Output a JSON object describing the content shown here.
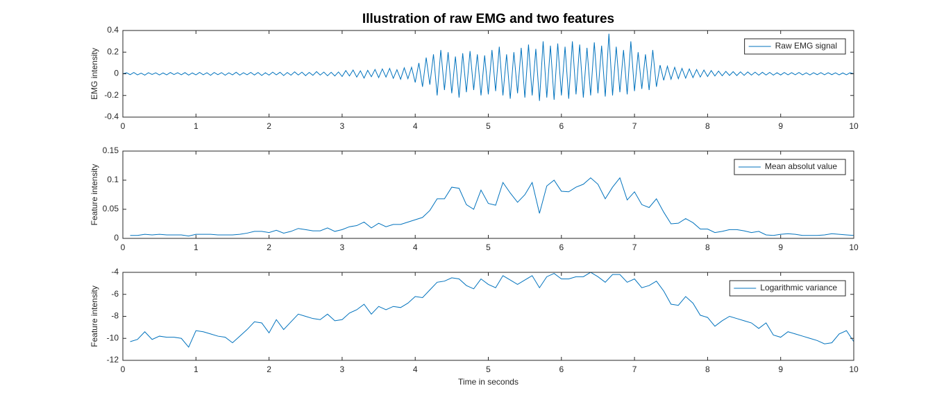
{
  "chart_data": [
    {
      "type": "line",
      "title": "Illustration of raw EMG and two features",
      "ylabel": "EMG intensity",
      "x": [
        0,
        0.05,
        0.1,
        0.15,
        0.2,
        0.25,
        0.3,
        0.35,
        0.4,
        0.45,
        0.5,
        0.55,
        0.6,
        0.65,
        0.7,
        0.75,
        0.8,
        0.85,
        0.9,
        0.95,
        1,
        1.05,
        1.1,
        1.15,
        1.2,
        1.25,
        1.3,
        1.35,
        1.4,
        1.45,
        1.5,
        1.55,
        1.6,
        1.65,
        1.7,
        1.75,
        1.8,
        1.85,
        1.9,
        1.95,
        2,
        2.05,
        2.1,
        2.15,
        2.2,
        2.25,
        2.3,
        2.35,
        2.4,
        2.45,
        2.5,
        2.55,
        2.6,
        2.65,
        2.7,
        2.75,
        2.8,
        2.85,
        2.9,
        2.95,
        3,
        3.05,
        3.1,
        3.15,
        3.2,
        3.25,
        3.3,
        3.35,
        3.4,
        3.45,
        3.5,
        3.55,
        3.6,
        3.65,
        3.7,
        3.75,
        3.8,
        3.85,
        3.9,
        3.95,
        4,
        4.05,
        4.1,
        4.15,
        4.2,
        4.25,
        4.3,
        4.35,
        4.4,
        4.45,
        4.5,
        4.55,
        4.6,
        4.65,
        4.7,
        4.75,
        4.8,
        4.85,
        4.9,
        4.95,
        5,
        5.05,
        5.1,
        5.15,
        5.2,
        5.25,
        5.3,
        5.35,
        5.4,
        5.45,
        5.5,
        5.55,
        5.6,
        5.65,
        5.7,
        5.75,
        5.8,
        5.85,
        5.9,
        5.95,
        6,
        6.05,
        6.1,
        6.15,
        6.2,
        6.25,
        6.3,
        6.35,
        6.4,
        6.45,
        6.5,
        6.55,
        6.6,
        6.65,
        6.7,
        6.75,
        6.8,
        6.85,
        6.9,
        6.95,
        7,
        7.05,
        7.1,
        7.15,
        7.2,
        7.25,
        7.3,
        7.35,
        7.4,
        7.45,
        7.5,
        7.55,
        7.6,
        7.65,
        7.7,
        7.75,
        7.8,
        7.85,
        7.9,
        7.95,
        8,
        8.05,
        8.1,
        8.15,
        8.2,
        8.25,
        8.3,
        8.35,
        8.4,
        8.45,
        8.5,
        8.55,
        8.6,
        8.65,
        8.7,
        8.75,
        8.8,
        8.85,
        8.9,
        8.95,
        9,
        9.05,
        9.1,
        9.15,
        9.2,
        9.25,
        9.3,
        9.35,
        9.4,
        9.45,
        9.5,
        9.55,
        9.6,
        9.65,
        9.7,
        9.75,
        9.8,
        9.85,
        9.9,
        9.95,
        10
      ],
      "series": [
        {
          "name": "Raw EMG signal",
          "color": "#0072bd",
          "values": [
            0,
            0.01,
            -0.008,
            0.012,
            -0.01,
            0.006,
            -0.012,
            0.01,
            -0.006,
            0.009,
            -0.011,
            0.008,
            -0.01,
            0.012,
            -0.007,
            0.01,
            -0.009,
            0.011,
            -0.012,
            0.008,
            -0.01,
            0.013,
            -0.009,
            0.01,
            -0.014,
            0.012,
            -0.008,
            0.011,
            -0.013,
            0.009,
            -0.01,
            0.014,
            -0.012,
            0.01,
            -0.009,
            0.013,
            -0.011,
            0.012,
            -0.015,
            0.01,
            -0.012,
            0.015,
            -0.01,
            0.014,
            -0.016,
            0.012,
            -0.013,
            0.018,
            -0.011,
            0.015,
            -0.017,
            0.013,
            -0.014,
            0.02,
            -0.012,
            0.016,
            -0.018,
            0.014,
            -0.02,
            0.017,
            -0.025,
            0.03,
            -0.02,
            0.035,
            -0.03,
            0.028,
            -0.04,
            0.032,
            -0.027,
            0.04,
            -0.035,
            0.045,
            -0.03,
            0.05,
            -0.042,
            0.038,
            -0.05,
            0.055,
            -0.045,
            0.06,
            -0.08,
            0.1,
            -0.12,
            0.15,
            -0.1,
            0.18,
            -0.2,
            0.22,
            -0.15,
            0.2,
            -0.18,
            0.16,
            -0.22,
            0.19,
            -0.17,
            0.21,
            -0.15,
            0.18,
            -0.2,
            0.17,
            -0.19,
            0.22,
            -0.16,
            0.25,
            -0.2,
            0.18,
            -0.23,
            0.2,
            -0.18,
            0.24,
            -0.22,
            0.27,
            -0.2,
            0.23,
            -0.25,
            0.3,
            -0.22,
            0.26,
            -0.24,
            0.28,
            -0.2,
            0.25,
            -0.23,
            0.3,
            -0.19,
            0.27,
            -0.22,
            0.24,
            -0.2,
            0.29,
            -0.18,
            0.26,
            -0.21,
            0.37,
            -0.2,
            0.25,
            -0.17,
            0.22,
            -0.19,
            0.3,
            -0.16,
            0.2,
            -0.14,
            0.18,
            -0.15,
            0.22,
            -0.12,
            0.08,
            -0.06,
            0.07,
            -0.05,
            0.06,
            -0.045,
            0.05,
            -0.04,
            0.045,
            -0.035,
            0.04,
            -0.03,
            0.035,
            -0.025,
            0.03,
            -0.02,
            0.025,
            -0.018,
            0.022,
            -0.015,
            0.02,
            -0.016,
            0.018,
            -0.014,
            0.017,
            -0.012,
            0.015,
            -0.013,
            0.014,
            -0.011,
            0.013,
            -0.012,
            0.01,
            -0.011,
            0.012,
            -0.01,
            0.011,
            -0.009,
            0.012,
            -0.01,
            0.009,
            -0.011,
            0.01,
            -0.008,
            0.011,
            -0.009,
            0.01,
            -0.008,
            0.009,
            -0.01,
            0.008,
            -0.009,
            0.01,
            0
          ]
        }
      ],
      "xlim": [
        0,
        10
      ],
      "xticks": [
        0,
        1,
        2,
        3,
        4,
        5,
        6,
        7,
        8,
        9,
        10
      ],
      "ylim": [
        -0.4,
        0.4
      ],
      "yticks": [
        -0.4,
        -0.2,
        0,
        0.2,
        0.4
      ],
      "legend": "upper right"
    },
    {
      "type": "line",
      "ylabel": "Feature intensity",
      "x": [
        0.1,
        0.2,
        0.3,
        0.4,
        0.5,
        0.6,
        0.7,
        0.8,
        0.9,
        1,
        1.1,
        1.2,
        1.3,
        1.4,
        1.5,
        1.6,
        1.7,
        1.8,
        1.9,
        2,
        2.1,
        2.2,
        2.3,
        2.4,
        2.5,
        2.6,
        2.7,
        2.8,
        2.9,
        3,
        3.1,
        3.2,
        3.3,
        3.4,
        3.5,
        3.6,
        3.7,
        3.8,
        3.9,
        4,
        4.1,
        4.2,
        4.3,
        4.4,
        4.5,
        4.6,
        4.7,
        4.8,
        4.9,
        5,
        5.1,
        5.2,
        5.3,
        5.4,
        5.5,
        5.6,
        5.7,
        5.8,
        5.9,
        6,
        6.1,
        6.2,
        6.3,
        6.4,
        6.5,
        6.6,
        6.7,
        6.8,
        6.9,
        7,
        7.1,
        7.2,
        7.3,
        7.4,
        7.5,
        7.6,
        7.7,
        7.8,
        7.9,
        8,
        8.1,
        8.2,
        8.3,
        8.4,
        8.5,
        8.6,
        8.7,
        8.8,
        8.9,
        9,
        9.1,
        9.2,
        9.3,
        9.4,
        9.5,
        9.6,
        9.7,
        9.8,
        9.9,
        10
      ],
      "series": [
        {
          "name": "Mean absolut value",
          "color": "#0072bd",
          "values": [
            0.005,
            0.005,
            0.007,
            0.006,
            0.007,
            0.006,
            0.006,
            0.006,
            0.004,
            0.007,
            0.007,
            0.007,
            0.006,
            0.006,
            0.006,
            0.007,
            0.009,
            0.012,
            0.012,
            0.01,
            0.014,
            0.009,
            0.012,
            0.017,
            0.015,
            0.013,
            0.013,
            0.018,
            0.012,
            0.015,
            0.02,
            0.022,
            0.028,
            0.018,
            0.026,
            0.02,
            0.024,
            0.024,
            0.028,
            0.032,
            0.036,
            0.048,
            0.068,
            0.068,
            0.088,
            0.086,
            0.058,
            0.05,
            0.083,
            0.06,
            0.057,
            0.096,
            0.078,
            0.062,
            0.075,
            0.096,
            0.043,
            0.09,
            0.1,
            0.081,
            0.08,
            0.088,
            0.093,
            0.104,
            0.093,
            0.068,
            0.088,
            0.104,
            0.066,
            0.08,
            0.058,
            0.053,
            0.068,
            0.045,
            0.025,
            0.026,
            0.034,
            0.027,
            0.016,
            0.016,
            0.01,
            0.012,
            0.015,
            0.015,
            0.013,
            0.01,
            0.012,
            0.006,
            0.005,
            0.007,
            0.008,
            0.007,
            0.005,
            0.005,
            0.005,
            0.006,
            0.008,
            0.007,
            0.006,
            0.005
          ]
        }
      ],
      "xlim": [
        0,
        10
      ],
      "xticks": [
        0,
        1,
        2,
        3,
        4,
        5,
        6,
        7,
        8,
        9,
        10
      ],
      "ylim": [
        0,
        0.15
      ],
      "yticks": [
        0,
        0.05,
        0.1,
        0.15
      ],
      "legend": "upper right"
    },
    {
      "type": "line",
      "ylabel": "Feature intensity",
      "xlabel": "Time in seconds",
      "x": [
        0.1,
        0.2,
        0.3,
        0.4,
        0.5,
        0.6,
        0.7,
        0.8,
        0.9,
        1,
        1.1,
        1.2,
        1.3,
        1.4,
        1.5,
        1.6,
        1.7,
        1.8,
        1.9,
        2,
        2.1,
        2.2,
        2.3,
        2.4,
        2.5,
        2.6,
        2.7,
        2.8,
        2.9,
        3,
        3.1,
        3.2,
        3.3,
        3.4,
        3.5,
        3.6,
        3.7,
        3.8,
        3.9,
        4,
        4.1,
        4.2,
        4.3,
        4.4,
        4.5,
        4.6,
        4.7,
        4.8,
        4.9,
        5,
        5.1,
        5.2,
        5.3,
        5.4,
        5.5,
        5.6,
        5.7,
        5.8,
        5.9,
        6,
        6.1,
        6.2,
        6.3,
        6.4,
        6.5,
        6.6,
        6.7,
        6.8,
        6.9,
        7,
        7.1,
        7.2,
        7.3,
        7.4,
        7.5,
        7.6,
        7.7,
        7.8,
        7.9,
        8,
        8.1,
        8.2,
        8.3,
        8.4,
        8.5,
        8.6,
        8.7,
        8.8,
        8.9,
        9,
        9.1,
        9.2,
        9.3,
        9.4,
        9.5,
        9.6,
        9.7,
        9.8,
        9.9,
        10
      ],
      "series": [
        {
          "name": "Logarithmic variance",
          "color": "#0072bd",
          "values": [
            -10.3,
            -10.1,
            -9.4,
            -10.1,
            -9.8,
            -9.9,
            -9.9,
            -10,
            -10.8,
            -9.3,
            -9.4,
            -9.6,
            -9.8,
            -9.9,
            -10.4,
            -9.8,
            -9.2,
            -8.5,
            -8.6,
            -9.5,
            -8.3,
            -9.2,
            -8.5,
            -7.8,
            -8,
            -8.2,
            -8.3,
            -7.8,
            -8.4,
            -8.3,
            -7.7,
            -7.4,
            -6.9,
            -7.8,
            -7.1,
            -7.4,
            -7.1,
            -7.2,
            -6.8,
            -6.2,
            -6.3,
            -5.6,
            -4.9,
            -4.8,
            -4.5,
            -4.6,
            -5.2,
            -5.5,
            -4.6,
            -5.1,
            -5.4,
            -4.3,
            -4.7,
            -5.1,
            -4.7,
            -4.3,
            -5.4,
            -4.4,
            -4.1,
            -4.6,
            -4.6,
            -4.4,
            -4.4,
            -4,
            -4.4,
            -4.9,
            -4.2,
            -4.2,
            -4.9,
            -4.6,
            -5.4,
            -5.2,
            -4.8,
            -5.7,
            -6.9,
            -7,
            -6.2,
            -6.8,
            -7.9,
            -8.1,
            -8.9,
            -8.4,
            -8,
            -8.2,
            -8.4,
            -8.6,
            -9.1,
            -8.6,
            -9.7,
            -9.9,
            -9.4,
            -9.6,
            -9.8,
            -10,
            -10.2,
            -10.5,
            -10.4,
            -9.6,
            -9.3,
            -10.3
          ]
        }
      ],
      "xlim": [
        0,
        10
      ],
      "xticks": [
        0,
        1,
        2,
        3,
        4,
        5,
        6,
        7,
        8,
        9,
        10
      ],
      "ylim": [
        -12,
        -4
      ],
      "yticks": [
        -12,
        -10,
        -8,
        -6,
        -4
      ],
      "legend": "upper right"
    }
  ]
}
